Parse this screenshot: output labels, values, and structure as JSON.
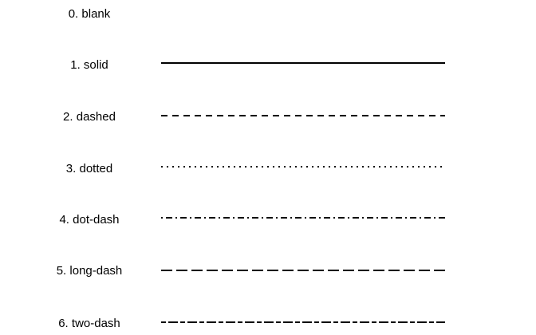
{
  "linetypes": [
    {
      "label": "0. blank",
      "style": "blank"
    },
    {
      "label": "1. solid",
      "style": "solid"
    },
    {
      "label": "2. dashed",
      "style": "dashed"
    },
    {
      "label": "3. dotted",
      "style": "dotted"
    },
    {
      "label": "4. dot-dash",
      "style": "dot-dash"
    },
    {
      "label": "5. long-dash",
      "style": "long-dash"
    },
    {
      "label": "6. two-dash",
      "style": "two-dash"
    }
  ],
  "line_color": "#000000"
}
